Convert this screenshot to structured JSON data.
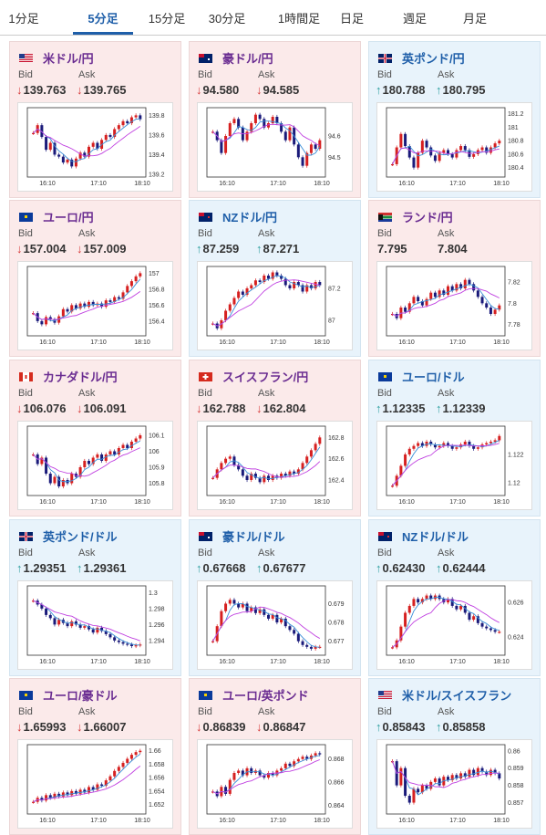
{
  "tabs": [
    {
      "label": "1分足"
    },
    {
      "label": "5分足",
      "active": true
    },
    {
      "label": "15分足"
    },
    {
      "label": "30分足"
    },
    {
      "label": "1時間足"
    },
    {
      "label": "日足"
    },
    {
      "label": "週足"
    },
    {
      "label": "月足"
    }
  ],
  "labels": {
    "bid": "Bid",
    "ask": "Ask"
  },
  "colors": {
    "up_candle": "#d62020",
    "down_candle": "#1a1a7a",
    "ma_fast": "#3a8fd8",
    "ma_slow": "#c040e0",
    "down_arrow": "#d63838",
    "up_arrow": "#2fa0a0"
  },
  "pairs": [
    {
      "name": "米ドル/円",
      "flag": "us",
      "direction": "down",
      "bid": "139.763",
      "ask": "139.765",
      "chart_data": {
        "type": "candlestick",
        "x_ticks": [
          "16:10",
          "17:10",
          "18:10"
        ],
        "y_ticks": [
          "139.8",
          "139.6",
          "139.4",
          "139.2"
        ],
        "ylim": [
          139.2,
          139.85
        ],
        "close": [
          139.62,
          139.7,
          139.58,
          139.45,
          139.52,
          139.4,
          139.38,
          139.32,
          139.35,
          139.28,
          139.36,
          139.42,
          139.38,
          139.48,
          139.52,
          139.46,
          139.55,
          139.6,
          139.58,
          139.66,
          139.7,
          139.74,
          139.72,
          139.78,
          139.8,
          139.76
        ]
      }
    },
    {
      "name": "豪ドル/円",
      "flag": "au",
      "direction": "down",
      "bid": "94.580",
      "ask": "94.585",
      "chart_data": {
        "type": "candlestick",
        "x_ticks": [
          "16:10",
          "17:10",
          "18:10"
        ],
        "y_ticks": [
          "94.6",
          "94.5"
        ],
        "ylim": [
          94.42,
          94.72
        ],
        "close": [
          94.62,
          94.58,
          94.52,
          94.6,
          94.66,
          94.68,
          94.64,
          94.58,
          94.62,
          94.66,
          94.7,
          94.68,
          94.64,
          94.66,
          94.69,
          94.66,
          94.62,
          94.58,
          94.64,
          94.56,
          94.5,
          94.46,
          94.52,
          94.56,
          94.54,
          94.58
        ]
      }
    },
    {
      "name": "英ポンド/円",
      "flag": "gb",
      "direction": "up",
      "bid": "180.788",
      "ask": "180.795",
      "chart_data": {
        "type": "candlestick",
        "x_ticks": [
          "16:10",
          "17:10",
          "18:10"
        ],
        "y_ticks": [
          "181.2",
          "181",
          "180.8",
          "180.6",
          "180.4"
        ],
        "ylim": [
          180.3,
          181.25
        ],
        "close": [
          180.45,
          180.7,
          180.9,
          180.72,
          180.55,
          180.4,
          180.62,
          180.8,
          180.7,
          180.58,
          180.5,
          180.62,
          180.66,
          180.6,
          180.55,
          180.66,
          180.72,
          180.66,
          180.56,
          180.6,
          180.66,
          180.7,
          180.62,
          180.7,
          180.76,
          180.8
        ]
      }
    },
    {
      "name": "ユーロ/円",
      "flag": "eu",
      "direction": "down",
      "bid": "157.004",
      "ask": "157.009",
      "chart_data": {
        "type": "candlestick",
        "x_ticks": [
          "16:10",
          "17:10",
          "18:10"
        ],
        "y_ticks": [
          "157",
          "156.8",
          "156.6",
          "156.4"
        ],
        "ylim": [
          156.25,
          157.05
        ],
        "close": [
          156.5,
          156.4,
          156.36,
          156.45,
          156.42,
          156.38,
          156.46,
          156.55,
          156.52,
          156.6,
          156.56,
          156.62,
          156.58,
          156.64,
          156.6,
          156.62,
          156.58,
          156.66,
          156.64,
          156.7,
          156.68,
          156.76,
          156.84,
          156.9,
          156.96,
          157.0
        ]
      }
    },
    {
      "name": "NZドル/円",
      "flag": "nz",
      "direction": "up",
      "bid": "87.259",
      "ask": "87.271",
      "chart_data": {
        "type": "candlestick",
        "x_ticks": [
          "16:10",
          "17:10",
          "18:10"
        ],
        "y_ticks": [
          "87.2",
          "87"
        ],
        "ylim": [
          86.92,
          87.32
        ],
        "close": [
          86.98,
          86.95,
          87.0,
          87.06,
          87.1,
          87.14,
          87.18,
          87.16,
          87.2,
          87.22,
          87.25,
          87.24,
          87.28,
          87.26,
          87.3,
          87.28,
          87.26,
          87.22,
          87.2,
          87.24,
          87.22,
          87.18,
          87.22,
          87.2,
          87.24,
          87.22
        ]
      }
    },
    {
      "name": "ランド/円",
      "flag": "za",
      "direction": "none",
      "bid": "7.795",
      "ask": "7.804",
      "chart_data": {
        "type": "candlestick",
        "x_ticks": [
          "16:10",
          "17:10",
          "18:10"
        ],
        "y_ticks": [
          "7.82",
          "7.8",
          "7.78"
        ],
        "ylim": [
          7.772,
          7.832
        ],
        "close": [
          7.79,
          7.786,
          7.796,
          7.792,
          7.8,
          7.806,
          7.802,
          7.798,
          7.804,
          7.81,
          7.806,
          7.812,
          7.808,
          7.816,
          7.812,
          7.818,
          7.814,
          7.822,
          7.818,
          7.812,
          7.806,
          7.8,
          7.796,
          7.79,
          7.794,
          7.798
        ]
      }
    },
    {
      "name": "カナダドル/円",
      "flag": "ca",
      "direction": "down",
      "bid": "106.076",
      "ask": "106.091",
      "chart_data": {
        "type": "candlestick",
        "x_ticks": [
          "16:10",
          "17:10",
          "18:10"
        ],
        "y_ticks": [
          "106.1",
          "106",
          "105.9",
          "105.8"
        ],
        "ylim": [
          105.74,
          106.14
        ],
        "close": [
          105.98,
          105.92,
          105.96,
          105.86,
          105.8,
          105.84,
          105.78,
          105.82,
          105.8,
          105.86,
          105.84,
          105.9,
          105.94,
          105.92,
          105.96,
          105.98,
          105.94,
          105.98,
          106.0,
          105.98,
          106.02,
          106.04,
          106.02,
          106.06,
          106.08,
          106.1
        ]
      }
    },
    {
      "name": "スイスフラン/円",
      "flag": "ch",
      "direction": "down",
      "bid": "162.788",
      "ask": "162.804",
      "chart_data": {
        "type": "candlestick",
        "x_ticks": [
          "16:10",
          "17:10",
          "18:10"
        ],
        "y_ticks": [
          "162.8",
          "162.6",
          "162.4"
        ],
        "ylim": [
          162.28,
          162.88
        ],
        "close": [
          162.42,
          162.5,
          162.56,
          162.6,
          162.62,
          162.54,
          162.5,
          162.44,
          162.4,
          162.46,
          162.42,
          162.38,
          162.44,
          162.4,
          162.44,
          162.42,
          162.46,
          162.44,
          162.48,
          162.46,
          162.5,
          162.56,
          162.62,
          162.68,
          162.74,
          162.8
        ]
      }
    },
    {
      "name": "ユーロ/ドル",
      "flag": "eu-us",
      "direction": "up",
      "bid": "1.12335",
      "ask": "1.12339",
      "chart_data": {
        "type": "candlestick",
        "x_ticks": [
          "16:10",
          "17:10",
          "18:10"
        ],
        "y_ticks": [
          "1.122",
          "1.12"
        ],
        "ylim": [
          1.1193,
          1.1238
        ],
        "close": [
          1.1198,
          1.1205,
          1.1212,
          1.122,
          1.1224,
          1.1226,
          1.1228,
          1.1226,
          1.1229,
          1.1227,
          1.1225,
          1.1226,
          1.1228,
          1.1226,
          1.1224,
          1.1225,
          1.1227,
          1.1229,
          1.1226,
          1.1224,
          1.1225,
          1.1227,
          1.1228,
          1.1229,
          1.123,
          1.1233
        ]
      }
    },
    {
      "name": "英ポンド/ドル",
      "flag": "gb-us",
      "direction": "up",
      "bid": "1.29351",
      "ask": "1.29361",
      "chart_data": {
        "type": "candlestick",
        "x_ticks": [
          "16:10",
          "17:10",
          "18:10"
        ],
        "y_ticks": [
          "1.3",
          "1.298",
          "1.296",
          "1.294"
        ],
        "ylim": [
          1.2925,
          1.3005
        ],
        "close": [
          1.299,
          1.2985,
          1.298,
          1.2972,
          1.2968,
          1.296,
          1.2966,
          1.2962,
          1.2958,
          1.2964,
          1.296,
          1.2956,
          1.2958,
          1.2954,
          1.295,
          1.2956,
          1.2952,
          1.2948,
          1.2944,
          1.294,
          1.2938,
          1.2936,
          1.2935,
          1.2933,
          1.2934,
          1.2935
        ]
      }
    },
    {
      "name": "豪ドル/ドル",
      "flag": "au-us",
      "direction": "up",
      "bid": "0.67668",
      "ask": "0.67677",
      "chart_data": {
        "type": "candlestick",
        "x_ticks": [
          "16:10",
          "17:10",
          "18:10"
        ],
        "y_ticks": [
          "0.679",
          "0.678",
          "0.677"
        ],
        "ylim": [
          0.6764,
          0.6798
        ],
        "close": [
          0.677,
          0.6778,
          0.6786,
          0.679,
          0.6792,
          0.679,
          0.6788,
          0.679,
          0.6786,
          0.6788,
          0.6785,
          0.6787,
          0.6784,
          0.6782,
          0.6784,
          0.678,
          0.6782,
          0.6778,
          0.6776,
          0.6774,
          0.677,
          0.6768,
          0.6767,
          0.6766,
          0.6767,
          0.6767
        ]
      }
    },
    {
      "name": "NZドル/ドル",
      "flag": "nz-us",
      "direction": "up",
      "bid": "0.62430",
      "ask": "0.62444",
      "chart_data": {
        "type": "candlestick",
        "x_ticks": [
          "16:10",
          "17:10",
          "18:10"
        ],
        "y_ticks": [
          "0.626",
          "0.624"
        ],
        "ylim": [
          0.6231,
          0.6268
        ],
        "close": [
          0.6234,
          0.6238,
          0.6246,
          0.6254,
          0.6258,
          0.6262,
          0.626,
          0.6262,
          0.6264,
          0.6262,
          0.6264,
          0.6262,
          0.626,
          0.6262,
          0.6258,
          0.6256,
          0.6258,
          0.6254,
          0.625,
          0.6252,
          0.6248,
          0.6246,
          0.6245,
          0.6244,
          0.6243,
          0.6243
        ]
      }
    },
    {
      "name": "ユーロ/豪ドル",
      "flag": "eu-au",
      "direction": "down",
      "bid": "1.65993",
      "ask": "1.66007",
      "chart_data": {
        "type": "candlestick",
        "x_ticks": [
          "16:10",
          "17:10",
          "18:10"
        ],
        "y_ticks": [
          "1.66",
          "1.658",
          "1.656",
          "1.654",
          "1.652"
        ],
        "ylim": [
          1.651,
          1.6605
        ],
        "close": [
          1.6524,
          1.653,
          1.6526,
          1.6534,
          1.653,
          1.6536,
          1.6532,
          1.6538,
          1.6534,
          1.654,
          1.6536,
          1.6542,
          1.6538,
          1.6546,
          1.6542,
          1.655,
          1.6548,
          1.6556,
          1.6562,
          1.657,
          1.6576,
          1.6582,
          1.6588,
          1.6594,
          1.6598,
          1.66
        ]
      }
    },
    {
      "name": "ユーロ/英ポンド",
      "flag": "eu-gb",
      "direction": "down",
      "bid": "0.86839",
      "ask": "0.86847",
      "chart_data": {
        "type": "candlestick",
        "x_ticks": [
          "16:10",
          "17:10",
          "18:10"
        ],
        "y_ticks": [
          "0.868",
          "0.866",
          "0.864"
        ],
        "ylim": [
          0.8635,
          0.869
        ],
        "close": [
          0.8652,
          0.8648,
          0.8656,
          0.865,
          0.8662,
          0.8668,
          0.867,
          0.8666,
          0.8672,
          0.8668,
          0.867,
          0.8666,
          0.8664,
          0.8668,
          0.8666,
          0.867,
          0.8672,
          0.8676,
          0.8674,
          0.8678,
          0.868,
          0.8682,
          0.868,
          0.8683,
          0.8685,
          0.8684
        ]
      }
    },
    {
      "name": "米ドル/スイスフラン",
      "flag": "us-ch",
      "direction": "up",
      "bid": "0.85843",
      "ask": "0.85858",
      "chart_data": {
        "type": "candlestick",
        "x_ticks": [
          "16:10",
          "17:10",
          "18:10"
        ],
        "y_ticks": [
          "0.86",
          "0.859",
          "0.858",
          "0.857"
        ],
        "ylim": [
          0.8565,
          0.8602
        ],
        "close": [
          0.8594,
          0.858,
          0.859,
          0.8574,
          0.857,
          0.8578,
          0.8576,
          0.858,
          0.8578,
          0.8582,
          0.8584,
          0.858,
          0.8585,
          0.8583,
          0.8586,
          0.8584,
          0.8587,
          0.8585,
          0.8589,
          0.8586,
          0.859,
          0.8588,
          0.8586,
          0.8589,
          0.8587,
          0.8584
        ]
      }
    }
  ]
}
